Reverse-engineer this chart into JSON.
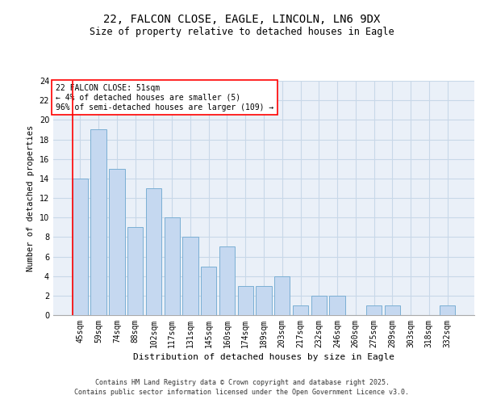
{
  "title1": "22, FALCON CLOSE, EAGLE, LINCOLN, LN6 9DX",
  "title2": "Size of property relative to detached houses in Eagle",
  "xlabel": "Distribution of detached houses by size in Eagle",
  "ylabel": "Number of detached properties",
  "categories": [
    "45sqm",
    "59sqm",
    "74sqm",
    "88sqm",
    "102sqm",
    "117sqm",
    "131sqm",
    "145sqm",
    "160sqm",
    "174sqm",
    "189sqm",
    "203sqm",
    "217sqm",
    "232sqm",
    "246sqm",
    "260sqm",
    "275sqm",
    "289sqm",
    "303sqm",
    "318sqm",
    "332sqm"
  ],
  "values": [
    14,
    19,
    15,
    9,
    13,
    10,
    8,
    5,
    7,
    3,
    3,
    4,
    1,
    2,
    2,
    0,
    1,
    1,
    0,
    0,
    1
  ],
  "bar_color": "#c5d8f0",
  "bar_edge_color": "#7bafd4",
  "annotation_text": "22 FALCON CLOSE: 51sqm\n← 4% of detached houses are smaller (5)\n96% of semi-detached houses are larger (109) →",
  "annotation_box_color": "white",
  "annotation_box_edge_color": "red",
  "ylim": [
    0,
    24
  ],
  "yticks": [
    0,
    2,
    4,
    6,
    8,
    10,
    12,
    14,
    16,
    18,
    20,
    22,
    24
  ],
  "grid_color": "#c8d8e8",
  "bg_color": "#eaf0f8",
  "footer": "Contains HM Land Registry data © Crown copyright and database right 2025.\nContains public sector information licensed under the Open Government Licence v3.0.",
  "highlight_bar_index": 0,
  "title1_fontsize": 10,
  "title2_fontsize": 8.5,
  "ylabel_fontsize": 7.5,
  "xlabel_fontsize": 8,
  "tick_fontsize": 7,
  "annotation_fontsize": 7,
  "footer_fontsize": 6
}
